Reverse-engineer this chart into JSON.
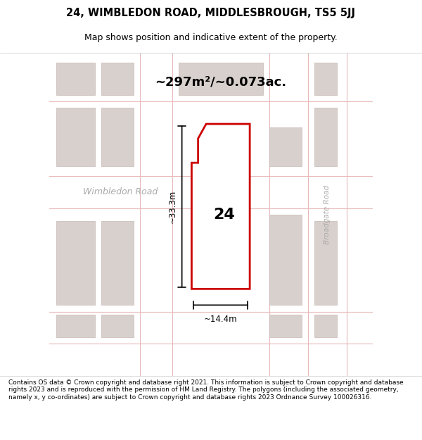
{
  "title": "24, WIMBLEDON ROAD, MIDDLESBROUGH, TS5 5JJ",
  "subtitle": "Map shows position and indicative extent of the property.",
  "area_text": "~297m²/~0.073ac.",
  "label_number": "24",
  "dim_width": "~14.4m",
  "dim_height": "~33.3m",
  "road_label": "Wimbledon Road",
  "road_label2": "Broadgate Road",
  "footer": "Contains OS data © Crown copyright and database right 2021. This information is subject to Crown copyright and database rights 2023 and is reproduced with the permission of HM Land Registry. The polygons (including the associated geometry, namely x, y co-ordinates) are subject to Crown copyright and database rights 2023 Ordnance Survey 100026316.",
  "bg_color": "#f5f0ee",
  "map_bg": "#f5f0ee",
  "plot_fill": "#ffffff",
  "plot_edge": "#cc0000",
  "grid_color": "#e8b8b8",
  "building_color": "#d8d0cc",
  "road_color": "#ffffff"
}
